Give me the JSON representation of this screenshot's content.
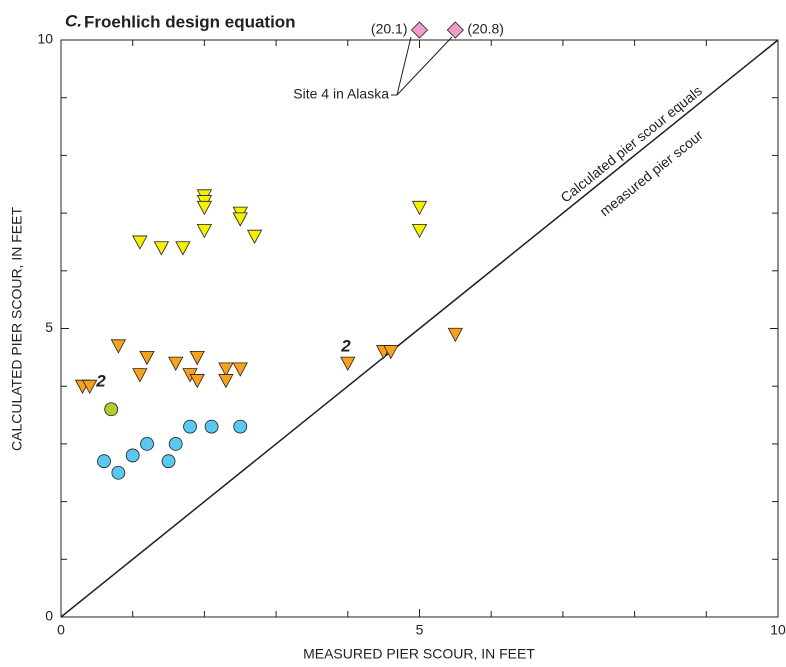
{
  "chart_data": {
    "type": "scatter",
    "title_letter": "C.",
    "title": "Froehlich design equation",
    "xlabel": "MEASURED PIER SCOUR, IN FEET",
    "ylabel": "CALCULATED PIER SCOUR, IN FEET",
    "xlim": [
      0,
      10
    ],
    "ylim": [
      0,
      10
    ],
    "xticks": [
      0,
      5,
      10
    ],
    "yticks": [
      0,
      5,
      10
    ],
    "xminor_ticks": [
      1,
      2,
      3,
      4,
      6,
      7,
      8,
      9
    ],
    "yminor_ticks": [
      1,
      2,
      3,
      4,
      6,
      7,
      8,
      9
    ],
    "equality_line": true,
    "series": [
      {
        "marker": "triangle-down",
        "color": "#f5f000",
        "x": [
          1.1,
          1.4,
          1.7,
          2.0,
          2.0,
          2.0,
          2.0,
          2.5,
          2.5,
          2.7,
          5.0,
          5.0
        ],
        "values": [
          6.5,
          6.4,
          6.4,
          7.3,
          7.2,
          7.1,
          6.7,
          7.0,
          6.9,
          6.6,
          7.1,
          6.7
        ]
      },
      {
        "marker": "triangle-down",
        "color": "#f7a21b",
        "x": [
          0.3,
          0.4,
          0.8,
          1.1,
          1.2,
          1.6,
          1.8,
          1.9,
          1.9,
          2.3,
          2.3,
          2.5,
          4.0,
          4.5,
          4.6,
          5.5
        ],
        "values": [
          4.0,
          4.0,
          4.7,
          4.2,
          4.5,
          4.4,
          4.2,
          4.1,
          4.5,
          4.3,
          4.1,
          4.3,
          4.4,
          4.6,
          4.6,
          4.9
        ]
      },
      {
        "marker": "circle",
        "color": "#5ac8f0",
        "x": [
          0.6,
          0.8,
          1.0,
          1.2,
          1.5,
          1.6,
          1.8,
          2.1,
          2.5
        ],
        "values": [
          2.7,
          2.5,
          2.8,
          3.0,
          2.7,
          3.0,
          3.3,
          3.3,
          3.3
        ]
      },
      {
        "marker": "circle",
        "color": "#b5cc2e",
        "x": [
          0.7
        ],
        "values": [
          3.6
        ]
      },
      {
        "marker": "diamond",
        "color": "#f29ccb",
        "x": [
          5.0,
          5.5
        ],
        "values": [
          20.1,
          20.8
        ],
        "value_labels": [
          "(20.1)",
          "(20.8)"
        ]
      }
    ],
    "annotations": [
      "2",
      "2",
      "Site 4 in Alaska",
      "Calculated pier scour equals",
      "measured pier scour"
    ]
  }
}
